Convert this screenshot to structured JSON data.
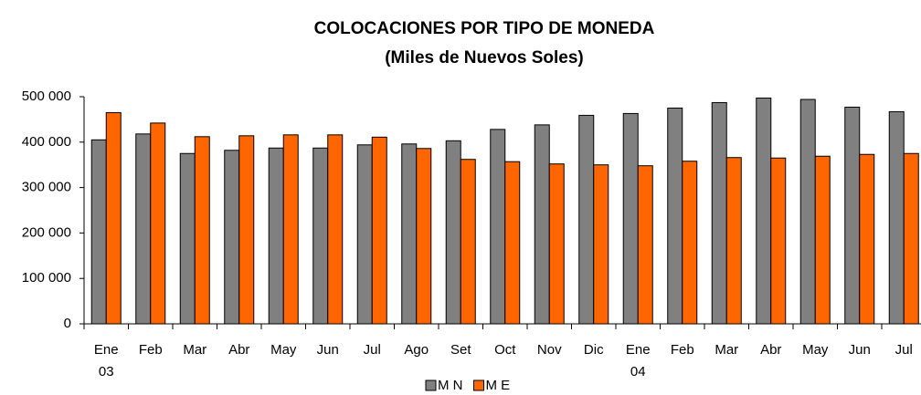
{
  "chart_data": {
    "type": "bar",
    "title": "COLOCACIONES POR TIPO DE MONEDA",
    "subtitle": "(Miles de Nuevos Soles)",
    "categories": [
      "Ene",
      "Feb",
      "Mar",
      "Abr",
      "May",
      "Jun",
      "Jul",
      "Ago",
      "Set",
      "Oct",
      "Nov",
      "Dic",
      "Ene",
      "Feb",
      "Mar",
      "Abr",
      "May",
      "Jun",
      "Jul"
    ],
    "year_labels": [
      "03",
      null,
      null,
      null,
      null,
      null,
      null,
      null,
      null,
      null,
      null,
      null,
      "04",
      null,
      null,
      null,
      null,
      null,
      null
    ],
    "series": [
      {
        "name": "M N",
        "color": "#808080",
        "values": [
          405000,
          418000,
          375000,
          382000,
          387000,
          387000,
          394000,
          396000,
          403000,
          428000,
          438000,
          459000,
          463000,
          475000,
          487000,
          497000,
          494000,
          477000,
          467000
        ]
      },
      {
        "name": "M E",
        "color": "#ff6600",
        "values": [
          465000,
          442000,
          412000,
          414000,
          416000,
          416000,
          411000,
          386000,
          362000,
          357000,
          352000,
          350000,
          348000,
          358000,
          366000,
          365000,
          369000,
          373000,
          375000
        ]
      }
    ],
    "ylim": [
      0,
      500000
    ],
    "yticks": [
      {
        "value": 0,
        "label": "0"
      },
      {
        "value": 100000,
        "label": "100 000"
      },
      {
        "value": 200000,
        "label": "200 000"
      },
      {
        "value": 300000,
        "label": "300 000"
      },
      {
        "value": 400000,
        "label": "400 000"
      },
      {
        "value": 500000,
        "label": "500 000"
      }
    ],
    "legend": "bottom"
  }
}
